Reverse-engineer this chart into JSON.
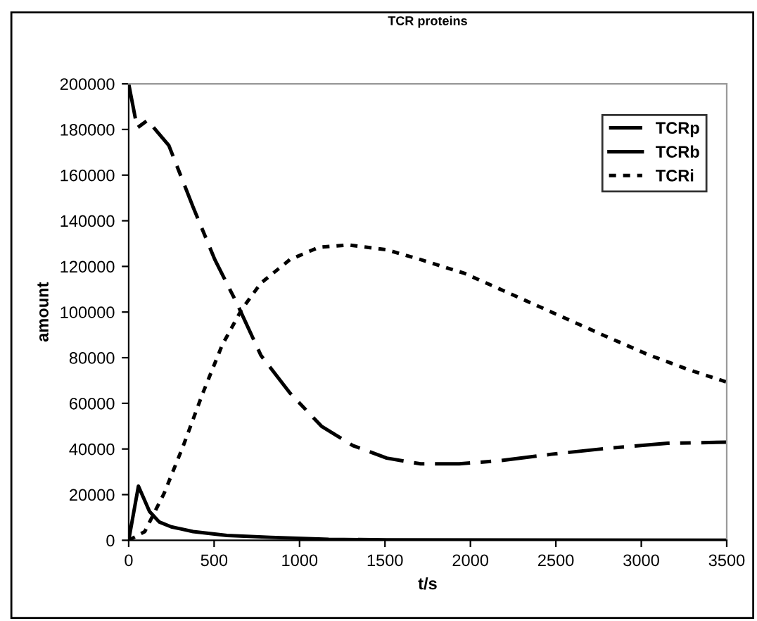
{
  "chart_data": {
    "type": "line",
    "title": "TCR proteins",
    "xlabel": "t/s",
    "ylabel": "amount",
    "xlim": [
      0,
      3500
    ],
    "xticks": [
      0,
      500,
      1000,
      1500,
      2000,
      2500,
      3000,
      3500
    ],
    "ylim": [
      0,
      200000
    ],
    "yticks": [
      0,
      20000,
      40000,
      60000,
      80000,
      100000,
      120000,
      140000,
      160000,
      180000,
      200000
    ],
    "grid": false,
    "legend": "top right",
    "marker": "none",
    "series": [
      {
        "name": "TCRp",
        "color": "#000000",
        "line_style": "dashed",
        "x": [
          0,
          50,
          110,
          235,
          377,
          504,
          632,
          774,
          944,
          1128,
          1312,
          1510,
          1708,
          1935,
          2162,
          2474,
          2814,
          3155,
          3500
        ],
        "values": [
          200000,
          180700,
          184000,
          173000,
          146000,
          123000,
          104000,
          81000,
          64500,
          50000,
          41500,
          36000,
          33500,
          33500,
          34800,
          37700,
          40400,
          42500,
          43000
        ]
      },
      {
        "name": "TCRb",
        "color": "#000000",
        "line_style": "solid",
        "x": [
          0,
          57,
          122,
          179,
          249,
          377,
          575,
          830,
          1170,
          1510,
          3500
        ],
        "values": [
          0,
          23700,
          12600,
          8000,
          5900,
          3800,
          2100,
          1300,
          400,
          200,
          0
        ]
      },
      {
        "name": "TCRi",
        "color": "#000000",
        "line_style": "dotted",
        "x": [
          0,
          94,
          207,
          320,
          434,
          547,
          660,
          774,
          944,
          1114,
          1284,
          1510,
          1708,
          1964,
          2219,
          2474,
          2786,
          3041,
          3268,
          3500
        ],
        "values": [
          0,
          3800,
          20500,
          41500,
          64500,
          85500,
          101000,
          112700,
          123000,
          128400,
          129400,
          127300,
          123000,
          117000,
          108500,
          100000,
          89600,
          81300,
          75000,
          69300
        ]
      }
    ]
  }
}
